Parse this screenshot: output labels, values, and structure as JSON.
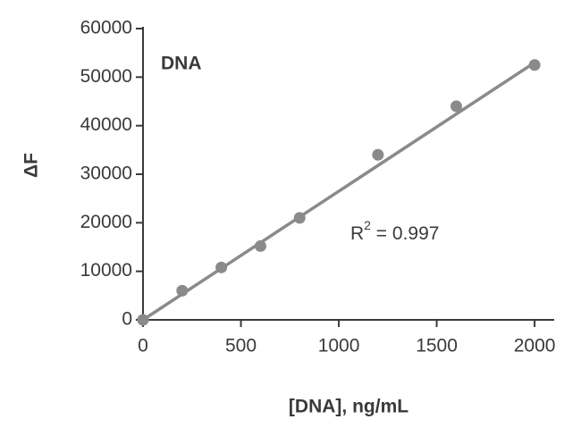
{
  "chart_data": {
    "type": "scatter",
    "title": "DNA",
    "x_label": "[DNA], ng/mL",
    "y_label": "ΔF",
    "annotation": [
      "R",
      "2",
      " = 0.997"
    ],
    "x": [
      0,
      200,
      400,
      600,
      800,
      1200,
      1600,
      2000
    ],
    "values": [
      0,
      6000,
      10800,
      15200,
      21000,
      34000,
      44000,
      52500
    ],
    "color": "#8a8a8a",
    "fit": {
      "x": [
        0,
        2000
      ],
      "values": [
        0,
        53000
      ],
      "color": "#8a8a8a"
    },
    "xlim": [
      0,
      2100
    ],
    "xticks": [
      0,
      500,
      1000,
      1500,
      2000
    ],
    "ylim": [
      0,
      60000
    ],
    "yticks": [
      0,
      10000,
      20000,
      30000,
      40000,
      50000,
      60000
    ]
  }
}
